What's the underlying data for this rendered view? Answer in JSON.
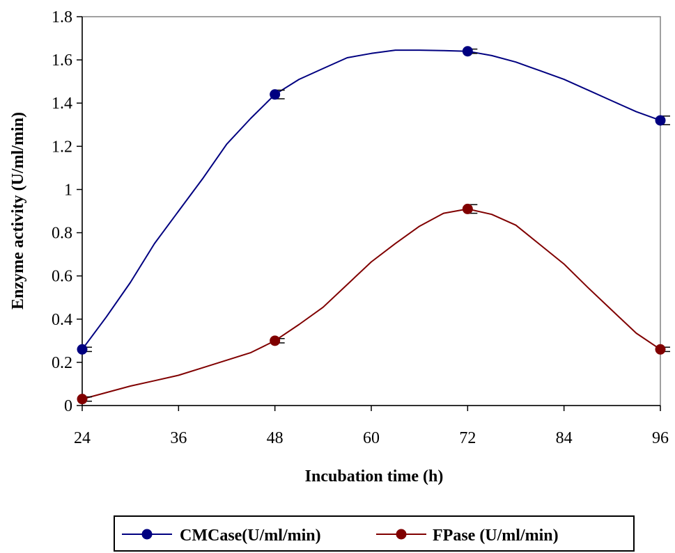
{
  "chart_data": {
    "type": "line",
    "title": "",
    "xlabel": "Incubation time (h)",
    "ylabel": "Enzyme activity (U/ml/min)",
    "xlim": [
      24,
      96
    ],
    "ylim": [
      0,
      1.8
    ],
    "x_ticks": [
      "24",
      "36",
      "48",
      "60",
      "72",
      "84",
      "96"
    ],
    "y_ticks": [
      "0",
      "0.2",
      "0.4",
      "0.6",
      "0.8",
      "1",
      "1.2",
      "1.4",
      "1.6",
      "1.8"
    ],
    "grid": false,
    "legend_position": "bottom",
    "series": [
      {
        "name": "CMCase(U/ml/min)",
        "color": "#000080",
        "marker_x": [
          24,
          48,
          72,
          96
        ],
        "marker_y": [
          0.26,
          1.44,
          1.64,
          1.32
        ],
        "error": [
          0.01,
          0.02,
          0.01,
          0.02
        ],
        "curve_x": [
          24,
          27,
          30,
          33,
          36,
          39,
          42,
          45,
          48,
          51,
          54,
          57,
          60,
          63,
          66,
          69,
          72,
          75,
          78,
          81,
          84,
          87,
          90,
          93,
          96
        ],
        "curve_y": [
          0.26,
          0.41,
          0.57,
          0.75,
          0.9,
          1.05,
          1.21,
          1.33,
          1.44,
          1.51,
          1.56,
          1.61,
          1.63,
          1.645,
          1.645,
          1.643,
          1.64,
          1.62,
          1.59,
          1.55,
          1.51,
          1.46,
          1.41,
          1.36,
          1.32
        ]
      },
      {
        "name": "FPase (U/ml/min)",
        "color": "#800000",
        "marker_x": [
          24,
          48,
          72,
          96
        ],
        "marker_y": [
          0.03,
          0.3,
          0.91,
          0.26
        ],
        "error": [
          0.01,
          0.01,
          0.02,
          0.01
        ],
        "curve_x": [
          24,
          27,
          30,
          33,
          36,
          39,
          42,
          45,
          48,
          51,
          54,
          57,
          60,
          63,
          66,
          69,
          72,
          75,
          78,
          81,
          84,
          87,
          90,
          93,
          96
        ],
        "curve_y": [
          0.03,
          0.06,
          0.09,
          0.115,
          0.14,
          0.175,
          0.21,
          0.245,
          0.3,
          0.375,
          0.455,
          0.56,
          0.665,
          0.75,
          0.83,
          0.89,
          0.91,
          0.885,
          0.835,
          0.745,
          0.655,
          0.545,
          0.44,
          0.335,
          0.26
        ]
      }
    ]
  }
}
